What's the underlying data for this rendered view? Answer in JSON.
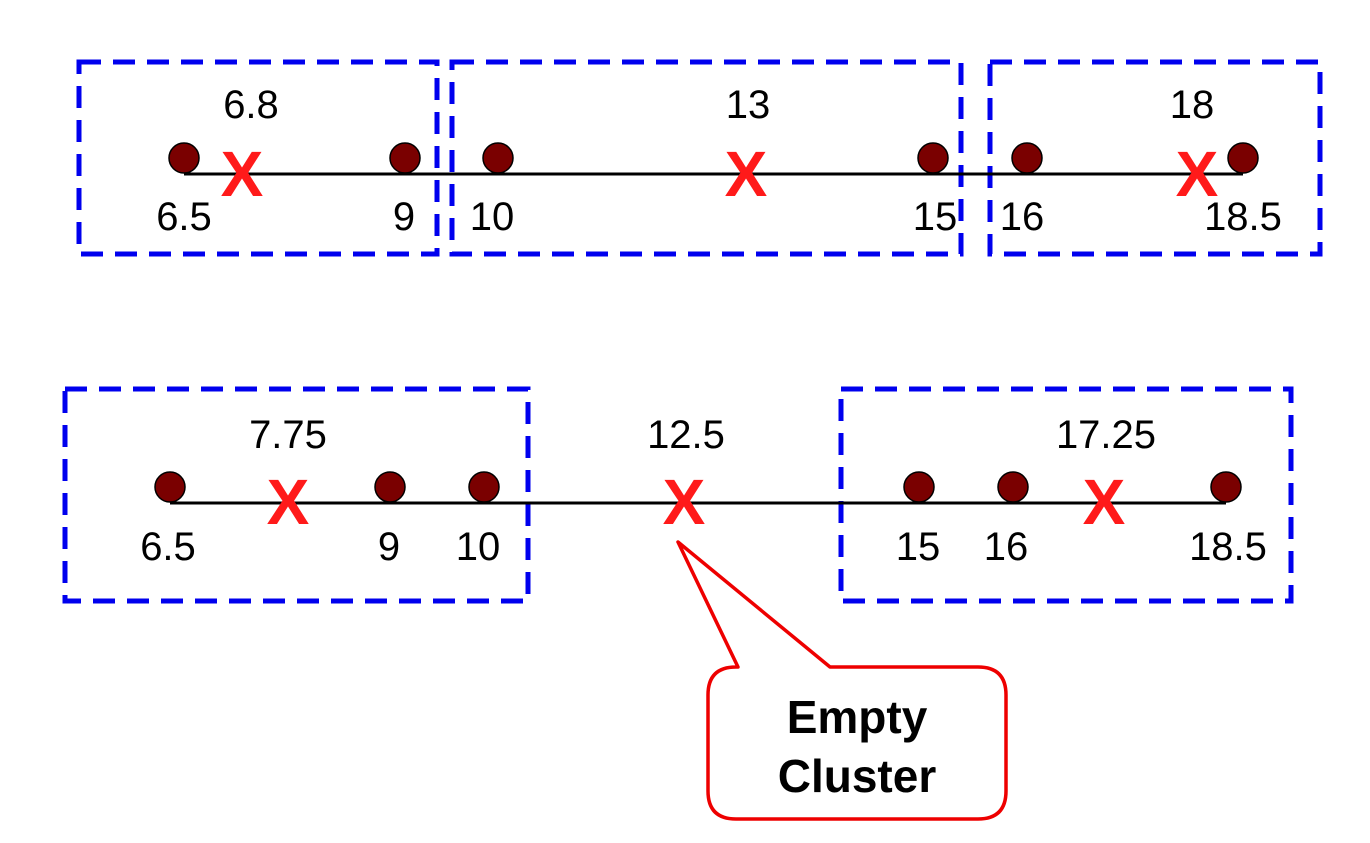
{
  "colors": {
    "point": "#7a0000",
    "centroid": "#ff1a1a",
    "cluster_box": "#0000ee",
    "axis": "#000000",
    "callout": "#ee0000"
  },
  "rows": [
    {
      "points": [
        "6.5",
        "9",
        "10",
        "15",
        "16",
        "18.5"
      ],
      "centroids": [
        "6.8",
        "13",
        "18"
      ],
      "centroid_mark": "X"
    },
    {
      "points": [
        "6.5",
        "9",
        "10",
        "15",
        "16",
        "18.5"
      ],
      "centroids": [
        "7.75",
        "12.5",
        "17.25"
      ],
      "centroid_mark": "X"
    }
  ],
  "callout": {
    "line1": "Empty",
    "line2": "Cluster"
  }
}
